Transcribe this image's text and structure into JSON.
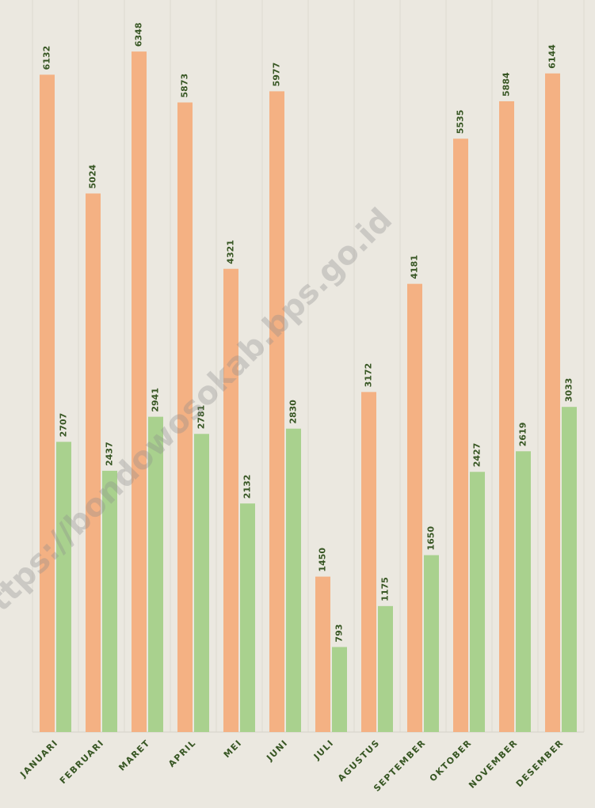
{
  "chart_data": {
    "type": "bar",
    "categories": [
      "JANUARI",
      "FEBRUARI",
      "MARET",
      "APRIL",
      "MEI",
      "JUNI",
      "JULI",
      "AGUSTUS",
      "SEPTEMBER",
      "OKTOBER",
      "NOVEMBER",
      "DESEMBER"
    ],
    "series": [
      {
        "color": "#f4b183",
        "values": [
          6132,
          5024,
          6348,
          5873,
          4321,
          5977,
          1450,
          3172,
          4181,
          5535,
          5884,
          6144
        ]
      },
      {
        "color": "#a9d18e",
        "values": [
          2707,
          2437,
          2941,
          2781,
          2132,
          2830,
          793,
          1175,
          1650,
          2427,
          2619,
          3033
        ]
      }
    ],
    "ylim": [
      0,
      6600
    ],
    "watermark": "https://bondowosokab.bps.go.id"
  }
}
